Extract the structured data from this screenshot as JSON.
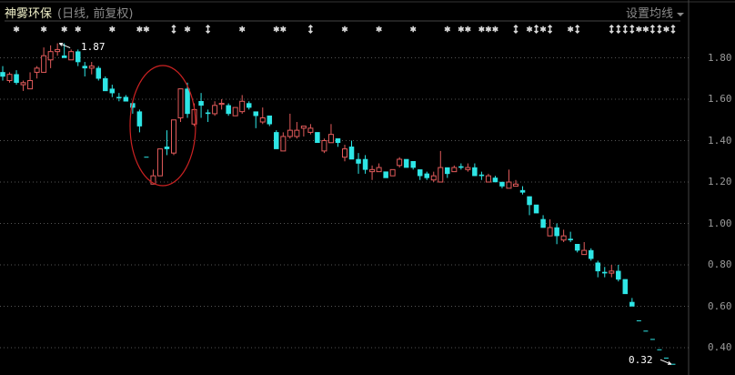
{
  "header": {
    "stock_name": "神雾环保",
    "period": "(日线, 前复权)",
    "ma_button": "设置均线",
    "ma_icon": "caret-down-icon"
  },
  "colors": {
    "background": "#000000",
    "up": "#e25b5b",
    "down": "#2ee6e6",
    "grid": "#555555",
    "annotation": "#cc2222",
    "marker": "#d8d8d8"
  },
  "chart_data": {
    "type": "candlestick",
    "title": "神雾环保",
    "yaxis_ticks": [
      "1.80",
      "1.60",
      "1.40",
      "1.20",
      "1.00",
      "0.80",
      "0.60",
      "0.40"
    ],
    "ylim": [
      0.3,
      1.9
    ],
    "grid": "horizontal dotted",
    "high_label": "1.87",
    "low_label": "0.32",
    "high_index": 8,
    "low_index": 98,
    "ohlc_format": [
      "open",
      "high",
      "low",
      "close"
    ],
    "ohlc": [
      [
        1.73,
        1.76,
        1.69,
        1.71
      ],
      [
        1.69,
        1.73,
        1.68,
        1.72
      ],
      [
        1.72,
        1.74,
        1.67,
        1.68
      ],
      [
        1.67,
        1.69,
        1.64,
        1.68
      ],
      [
        1.65,
        1.73,
        1.65,
        1.69
      ],
      [
        1.73,
        1.76,
        1.7,
        1.75
      ],
      [
        1.73,
        1.85,
        1.73,
        1.81
      ],
      [
        1.79,
        1.86,
        1.75,
        1.83
      ],
      [
        1.83,
        1.87,
        1.81,
        1.84
      ],
      [
        1.81,
        1.87,
        1.8,
        1.8
      ],
      [
        1.79,
        1.84,
        1.79,
        1.83
      ],
      [
        1.83,
        1.84,
        1.76,
        1.78
      ],
      [
        1.76,
        1.78,
        1.71,
        1.75
      ],
      [
        1.75,
        1.78,
        1.72,
        1.76
      ],
      [
        1.75,
        1.76,
        1.69,
        1.7
      ],
      [
        1.7,
        1.71,
        1.64,
        1.64
      ],
      [
        1.65,
        1.67,
        1.61,
        1.63
      ],
      [
        1.61,
        1.63,
        1.59,
        1.61
      ],
      [
        1.61,
        1.62,
        1.59,
        1.59
      ],
      [
        1.58,
        1.59,
        1.53,
        1.56
      ],
      [
        1.54,
        1.55,
        1.44,
        1.47
      ],
      [
        1.32,
        1.32,
        1.32,
        1.32
      ],
      [
        1.19,
        1.26,
        1.19,
        1.23
      ],
      [
        1.23,
        1.36,
        1.23,
        1.36
      ],
      [
        1.37,
        1.45,
        1.33,
        1.36
      ],
      [
        1.34,
        1.5,
        1.33,
        1.5
      ],
      [
        1.51,
        1.65,
        1.49,
        1.65
      ],
      [
        1.65,
        1.68,
        1.51,
        1.53
      ],
      [
        1.48,
        1.58,
        1.47,
        1.55
      ],
      [
        1.59,
        1.63,
        1.51,
        1.57
      ],
      [
        1.535,
        1.55,
        1.49,
        1.53
      ],
      [
        1.53,
        1.59,
        1.52,
        1.57
      ],
      [
        1.575,
        1.6,
        1.55,
        1.58
      ],
      [
        1.57,
        1.58,
        1.52,
        1.53
      ],
      [
        1.52,
        1.56,
        1.52,
        1.56
      ],
      [
        1.54,
        1.62,
        1.53,
        1.59
      ],
      [
        1.58,
        1.59,
        1.55,
        1.56
      ],
      [
        1.54,
        1.54,
        1.46,
        1.52
      ],
      [
        1.49,
        1.56,
        1.48,
        1.51
      ],
      [
        1.52,
        1.52,
        1.47,
        1.48
      ],
      [
        1.44,
        1.45,
        1.36,
        1.36
      ],
      [
        1.35,
        1.44,
        1.35,
        1.42
      ],
      [
        1.42,
        1.53,
        1.41,
        1.45
      ],
      [
        1.42,
        1.49,
        1.41,
        1.45
      ],
      [
        1.46,
        1.47,
        1.42,
        1.47
      ],
      [
        1.44,
        1.48,
        1.43,
        1.46
      ],
      [
        1.44,
        1.44,
        1.39,
        1.39
      ],
      [
        1.35,
        1.41,
        1.34,
        1.4
      ],
      [
        1.39,
        1.48,
        1.39,
        1.43
      ],
      [
        1.41,
        1.41,
        1.37,
        1.39
      ],
      [
        1.32,
        1.38,
        1.3,
        1.36
      ],
      [
        1.37,
        1.4,
        1.31,
        1.31
      ],
      [
        1.31,
        1.34,
        1.24,
        1.29
      ],
      [
        1.31,
        1.33,
        1.24,
        1.26
      ],
      [
        1.25,
        1.28,
        1.21,
        1.26
      ],
      [
        1.25,
        1.29,
        1.25,
        1.27
      ],
      [
        1.25,
        1.25,
        1.22,
        1.22
      ],
      [
        1.23,
        1.26,
        1.23,
        1.26
      ],
      [
        1.28,
        1.32,
        1.27,
        1.31
      ],
      [
        1.31,
        1.31,
        1.27,
        1.27
      ],
      [
        1.3,
        1.3,
        1.26,
        1.27
      ],
      [
        1.26,
        1.26,
        1.21,
        1.23
      ],
      [
        1.24,
        1.25,
        1.21,
        1.22
      ],
      [
        1.21,
        1.25,
        1.2,
        1.23
      ],
      [
        1.2,
        1.35,
        1.2,
        1.27
      ],
      [
        1.27,
        1.27,
        1.22,
        1.24
      ],
      [
        1.25,
        1.28,
        1.25,
        1.27
      ],
      [
        1.275,
        1.29,
        1.26,
        1.27
      ],
      [
        1.26,
        1.29,
        1.25,
        1.27
      ],
      [
        1.27,
        1.29,
        1.23,
        1.23
      ],
      [
        1.235,
        1.25,
        1.21,
        1.23
      ],
      [
        1.2,
        1.24,
        1.2,
        1.23
      ],
      [
        1.22,
        1.23,
        1.2,
        1.2
      ],
      [
        1.2,
        1.2,
        1.17,
        1.18
      ],
      [
        1.17,
        1.26,
        1.17,
        1.2
      ],
      [
        1.18,
        1.21,
        1.18,
        1.19
      ],
      [
        1.16,
        1.18,
        1.14,
        1.15
      ],
      [
        1.13,
        1.13,
        1.04,
        1.09
      ],
      [
        1.09,
        1.09,
        1.05,
        1.05
      ],
      [
        1.02,
        1.04,
        0.98,
        0.98
      ],
      [
        0.94,
        1.02,
        0.94,
        0.98
      ],
      [
        0.98,
        1.0,
        0.9,
        0.94
      ],
      [
        0.92,
        0.97,
        0.91,
        0.94
      ],
      [
        0.925,
        0.96,
        0.91,
        0.92
      ],
      [
        0.9,
        0.9,
        0.86,
        0.87
      ],
      [
        0.85,
        0.91,
        0.85,
        0.87
      ],
      [
        0.87,
        0.88,
        0.82,
        0.83
      ],
      [
        0.81,
        0.82,
        0.74,
        0.77
      ],
      [
        0.765,
        0.79,
        0.74,
        0.76
      ],
      [
        0.76,
        0.8,
        0.74,
        0.77
      ],
      [
        0.77,
        0.8,
        0.72,
        0.73
      ],
      [
        0.73,
        0.73,
        0.66,
        0.66
      ],
      [
        0.62,
        0.64,
        0.6,
        0.6
      ],
      [
        0.53,
        0.53,
        0.53,
        0.53
      ],
      [
        0.48,
        0.48,
        0.48,
        0.48
      ],
      [
        0.44,
        0.44,
        0.44,
        0.44
      ],
      [
        0.39,
        0.39,
        0.39,
        0.39
      ],
      [
        0.35,
        0.35,
        0.35,
        0.35
      ],
      [
        0.32,
        0.32,
        0.32,
        0.32
      ]
    ],
    "event_markers": [
      {
        "i": 2,
        "t": "star"
      },
      {
        "i": 6,
        "t": "star"
      },
      {
        "i": 9,
        "t": "star"
      },
      {
        "i": 11,
        "t": "star"
      },
      {
        "i": 16,
        "t": "star"
      },
      {
        "i": 20,
        "t": "star"
      },
      {
        "i": 21,
        "t": "star"
      },
      {
        "i": 25,
        "t": "arrow"
      },
      {
        "i": 27,
        "t": "star"
      },
      {
        "i": 30,
        "t": "arrow"
      },
      {
        "i": 35,
        "t": "star"
      },
      {
        "i": 40,
        "t": "star"
      },
      {
        "i": 41,
        "t": "star"
      },
      {
        "i": 45,
        "t": "arrow"
      },
      {
        "i": 50,
        "t": "star"
      },
      {
        "i": 55,
        "t": "star"
      },
      {
        "i": 60,
        "t": "star"
      },
      {
        "i": 65,
        "t": "star"
      },
      {
        "i": 67,
        "t": "star"
      },
      {
        "i": 68,
        "t": "star"
      },
      {
        "i": 70,
        "t": "star"
      },
      {
        "i": 71,
        "t": "star"
      },
      {
        "i": 72,
        "t": "star"
      },
      {
        "i": 75,
        "t": "arrow"
      },
      {
        "i": 77,
        "t": "star"
      },
      {
        "i": 78,
        "t": "arrow"
      },
      {
        "i": 79,
        "t": "star"
      },
      {
        "i": 80,
        "t": "arrow"
      },
      {
        "i": 83,
        "t": "star"
      },
      {
        "i": 84,
        "t": "arrow"
      },
      {
        "i": 89,
        "t": "arrow"
      },
      {
        "i": 90,
        "t": "arrow"
      },
      {
        "i": 91,
        "t": "arrow"
      },
      {
        "i": 92,
        "t": "arrow"
      },
      {
        "i": 93,
        "t": "star"
      },
      {
        "i": 94,
        "t": "star"
      },
      {
        "i": 95,
        "t": "arrow"
      },
      {
        "i": 96,
        "t": "arrow"
      },
      {
        "i": 97,
        "t": "star"
      },
      {
        "i": 98,
        "t": "arrow"
      }
    ]
  }
}
